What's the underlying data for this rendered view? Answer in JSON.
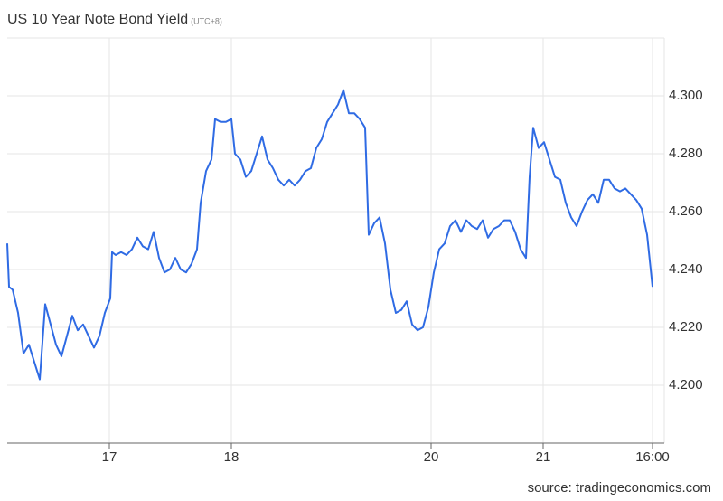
{
  "chart_data": {
    "type": "line",
    "title": "US 10 Year Note Bond Yield",
    "subtitle": "(UTC+8)",
    "source": "source: tradingeconomics.com",
    "x": [
      0,
      1,
      3,
      6,
      9,
      12,
      15,
      18,
      21,
      24,
      27,
      30,
      33,
      36,
      39,
      42,
      45,
      48,
      51,
      54,
      57,
      58,
      60,
      63,
      66,
      69,
      72,
      75,
      78,
      81,
      84,
      87,
      90,
      93,
      96,
      99,
      102,
      105,
      107,
      110,
      113,
      115,
      118,
      121,
      124,
      126,
      129,
      132,
      135,
      138,
      141,
      144,
      147,
      150,
      153,
      156,
      159,
      162,
      165,
      168,
      171,
      174,
      177,
      180,
      183,
      186,
      189,
      192,
      195,
      198,
      200,
      203,
      206,
      209,
      212,
      215,
      218,
      221,
      224,
      227,
      230,
      233,
      236,
      239,
      242,
      245,
      248,
      251,
      254,
      257,
      260,
      263,
      266,
      269,
      272,
      275,
      278,
      281,
      284,
      287,
      289,
      291,
      294,
      297,
      300,
      303,
      306,
      309,
      312,
      315,
      318,
      321,
      324,
      327,
      330,
      333,
      336,
      339,
      342,
      345,
      348,
      351,
      354,
      357
    ],
    "series": [
      {
        "name": "US 10 Year Note Bond Yield",
        "color": "#2f6be4",
        "values": [
          4.249,
          4.234,
          4.233,
          4.225,
          4.211,
          4.214,
          4.208,
          4.202,
          4.228,
          4.221,
          4.214,
          4.21,
          4.217,
          4.224,
          4.219,
          4.221,
          4.217,
          4.213,
          4.217,
          4.225,
          4.23,
          4.246,
          4.245,
          4.246,
          4.245,
          4.247,
          4.251,
          4.248,
          4.247,
          4.253,
          4.244,
          4.239,
          4.24,
          4.244,
          4.24,
          4.239,
          4.242,
          4.247,
          4.263,
          4.274,
          4.278,
          4.292,
          4.291,
          4.291,
          4.292,
          4.28,
          4.278,
          4.272,
          4.274,
          4.28,
          4.286,
          4.278,
          4.275,
          4.271,
          4.269,
          4.271,
          4.269,
          4.271,
          4.274,
          4.275,
          4.282,
          4.285,
          4.291,
          4.294,
          4.297,
          4.302,
          4.294,
          4.294,
          4.292,
          4.289,
          4.252,
          4.256,
          4.258,
          4.249,
          4.233,
          4.225,
          4.226,
          4.229,
          4.221,
          4.219,
          4.22,
          4.227,
          4.239,
          4.247,
          4.249,
          4.255,
          4.257,
          4.253,
          4.257,
          4.255,
          4.254,
          4.257,
          4.251,
          4.254,
          4.255,
          4.257,
          4.257,
          4.253,
          4.247,
          4.244,
          4.272,
          4.289,
          4.282,
          4.284,
          4.278,
          4.272,
          4.271,
          4.263,
          4.258,
          4.255,
          4.26,
          4.264,
          4.266,
          4.263,
          4.271,
          4.271,
          4.268,
          4.267,
          4.268,
          4.266,
          4.264,
          4.261,
          4.252,
          4.234
        ]
      }
    ],
    "xlim": [
      0,
      363.5
    ],
    "xticks": [
      {
        "value": 56.5,
        "label": "17"
      },
      {
        "value": 124,
        "label": "18"
      },
      {
        "value": 234.5,
        "label": "20"
      },
      {
        "value": 296.5,
        "label": "21"
      },
      {
        "value": 357,
        "label": "16:00"
      }
    ],
    "ylim": [
      4.18,
      4.32
    ],
    "yticks": [
      {
        "value": 4.2,
        "label": "4.200"
      },
      {
        "value": 4.22,
        "label": "4.220"
      },
      {
        "value": 4.24,
        "label": "4.240"
      },
      {
        "value": 4.26,
        "label": "4.260"
      },
      {
        "value": 4.28,
        "label": "4.280"
      },
      {
        "value": 4.3,
        "label": "4.300"
      }
    ],
    "grid": true
  }
}
